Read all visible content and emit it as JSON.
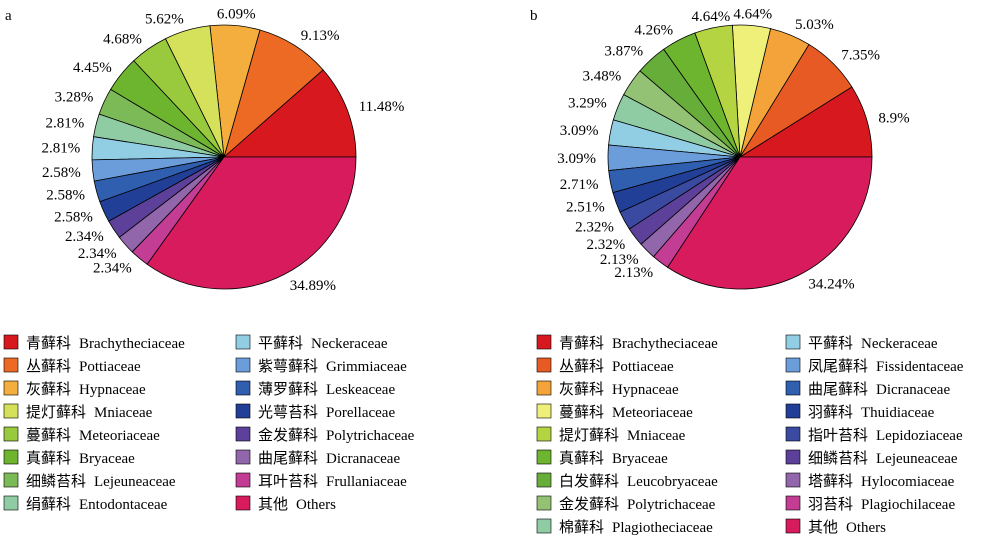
{
  "chart_data": [
    {
      "type": "pie",
      "panel_label": "a",
      "slices": [
        {
          "cn": "青藓科",
          "en": "Brachytheciaceae",
          "value": 11.48,
          "label": "11.48%",
          "color": "#d7191f"
        },
        {
          "cn": "丛藓科",
          "en": "Pottiaceae",
          "value": 9.13,
          "label": "9.13%",
          "color": "#ec6a23"
        },
        {
          "cn": "灰藓科",
          "en": "Hypnaceae",
          "value": 6.09,
          "label": "6.09%",
          "color": "#f3ae3d"
        },
        {
          "cn": "提灯藓科",
          "en": "Mniaceae",
          "value": 5.62,
          "label": "5.62%",
          "color": "#d5e15a"
        },
        {
          "cn": "蔓藓科",
          "en": "Meteoriaceae",
          "value": 4.68,
          "label": "4.68%",
          "color": "#99c93d"
        },
        {
          "cn": "真藓科",
          "en": "Bryaceae",
          "value": 4.45,
          "label": "4.45%",
          "color": "#6db52f"
        },
        {
          "cn": "细鳞苔科",
          "en": "Lejeuneaceae",
          "value": 3.28,
          "label": "3.28%",
          "color": "#7cb957"
        },
        {
          "cn": "绢藓科",
          "en": "Entodontaceae",
          "value": 2.81,
          "label": "2.81%",
          "color": "#8fcca4"
        },
        {
          "cn": "平藓科",
          "en": "Neckeraceae",
          "value": 2.81,
          "label": "2.81%",
          "color": "#91cee4"
        },
        {
          "cn": "紫萼藓科",
          "en": "Grimmiaceae",
          "value": 2.58,
          "label": "2.58%",
          "color": "#6c9ddb"
        },
        {
          "cn": "薄罗藓科",
          "en": "Leskeaceae",
          "value": 2.58,
          "label": "2.58%",
          "color": "#2f5fae"
        },
        {
          "cn": "光萼苔科",
          "en": "Porellaceae",
          "value": 2.58,
          "label": "2.58%",
          "color": "#223f97"
        },
        {
          "cn": "金发藓科",
          "en": "Polytrichaceae",
          "value": 2.34,
          "label": "2.34%",
          "color": "#5c4099"
        },
        {
          "cn": "曲尾藓科",
          "en": "Dicranaceae",
          "value": 2.34,
          "label": "2.34%",
          "color": "#9266ab"
        },
        {
          "cn": "耳叶苔科",
          "en": "Frullaniaceae",
          "value": 2.34,
          "label": "2.34%",
          "color": "#c33d95"
        },
        {
          "cn": "其他",
          "en": "Others",
          "value": 34.89,
          "label": "34.89%",
          "color": "#d81b5c"
        }
      ]
    },
    {
      "type": "pie",
      "panel_label": "b",
      "slices": [
        {
          "cn": "青藓科",
          "en": "Brachytheciaceae",
          "value": 8.9,
          "label": "8.9%",
          "color": "#d7191f"
        },
        {
          "cn": "丛藓科",
          "en": "Pottiaceae",
          "value": 7.35,
          "label": "7.35%",
          "color": "#e85a24"
        },
        {
          "cn": "灰藓科",
          "en": "Hypnaceae",
          "value": 5.03,
          "label": "5.03%",
          "color": "#f3a339"
        },
        {
          "cn": "蔓藓科",
          "en": "Meteoriaceae",
          "value": 4.64,
          "label": "4.64%",
          "color": "#eef07a"
        },
        {
          "cn": "提灯藓科",
          "en": "Mniaceae",
          "value": 4.64,
          "label": "4.64%",
          "color": "#b5d441"
        },
        {
          "cn": "真藓科",
          "en": "Bryaceae",
          "value": 4.26,
          "label": "4.26%",
          "color": "#6db52f"
        },
        {
          "cn": "白发藓科",
          "en": "Leucobryaceae",
          "value": 3.87,
          "label": "3.87%",
          "color": "#66ad3a"
        },
        {
          "cn": "金发藓科",
          "en": "Polytrichaceae",
          "value": 3.48,
          "label": "3.48%",
          "color": "#93c274"
        },
        {
          "cn": "棉藓科",
          "en": "Plagiotheciaceae",
          "value": 3.29,
          "label": "3.29%",
          "color": "#8fcca4"
        },
        {
          "cn": "平藓科",
          "en": "Neckeraceae",
          "value": 3.09,
          "label": "3.09%",
          "color": "#91cee4"
        },
        {
          "cn": "凤尾藓科",
          "en": "Fissidentaceae",
          "value": 3.09,
          "label": "3.09%",
          "color": "#6c9ddb"
        },
        {
          "cn": "曲尾藓科",
          "en": "Dicranaceae",
          "value": 2.71,
          "label": "2.71%",
          "color": "#2f5fae"
        },
        {
          "cn": "羽藓科",
          "en": "Thuidiaceae",
          "value": 2.51,
          "label": "2.51%",
          "color": "#223f97"
        },
        {
          "cn": "指叶苔科",
          "en": "Lepidoziaceae",
          "value": 2.32,
          "label": "2.32%",
          "color": "#3a4aa0"
        },
        {
          "cn": "细鳞苔科",
          "en": "Lejeuneaceae",
          "value": 2.32,
          "label": "2.32%",
          "color": "#5c4099"
        },
        {
          "cn": "塔藓科",
          "en": "Hylocomiaceae",
          "value": 2.13,
          "label": "2.13%",
          "color": "#9266ab"
        },
        {
          "cn": "羽苔科",
          "en": "Plagiochilaceae",
          "value": 2.13,
          "label": "2.13%",
          "color": "#c33d95"
        },
        {
          "cn": "其他",
          "en": "Others",
          "value": 34.24,
          "label": "34.24%",
          "color": "#d81b5c"
        }
      ]
    }
  ]
}
